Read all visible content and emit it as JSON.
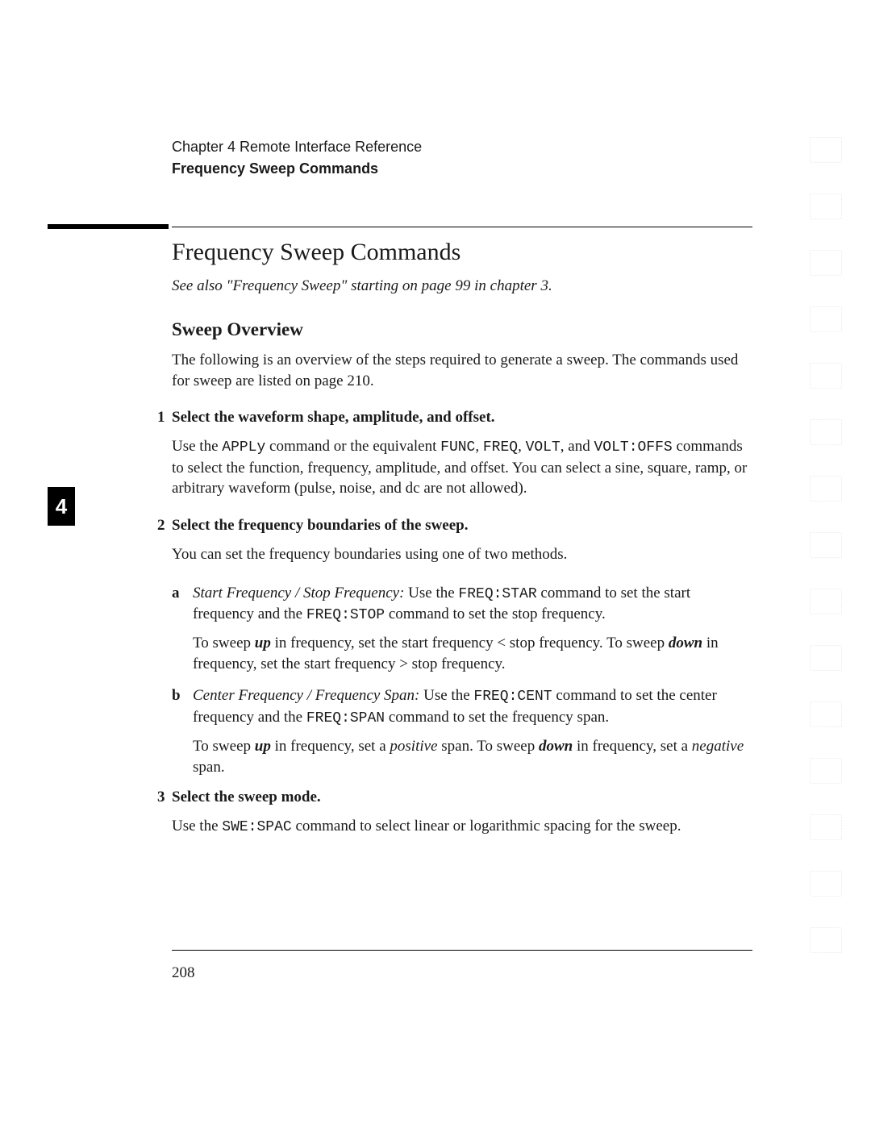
{
  "header": {
    "chapter": "Chapter 4  Remote Interface Reference",
    "section": "Frequency Sweep Commands"
  },
  "tab": {
    "label": "4"
  },
  "content": {
    "main_title": "Frequency Sweep Commands",
    "see_also": "See also \"Frequency Sweep\" starting on page 99 in chapter 3.",
    "sub_title": "Sweep Overview",
    "intro": "The following is an overview of the steps required to generate a sweep. The commands used for sweep are listed on page 210.",
    "step1": {
      "num": "1",
      "title": "Select the waveform shape, amplitude, and offset.",
      "body_pre": "Use the ",
      "apply": "APPLy",
      "body_mid1": " command or the equivalent ",
      "func": "FUNC",
      "sep1": ", ",
      "freq": "FREQ",
      "sep2": ", ",
      "volt": "VOLT",
      "body_mid2": ", and ",
      "voltoffs": "VOLT:OFFS",
      "body_post": " commands to select the function, frequency, amplitude, and offset. You can select a sine, square, ramp, or arbitrary waveform (pulse, noise, and dc are not allowed)."
    },
    "step2": {
      "num": "2",
      "title": "Select the frequency boundaries of the sweep.",
      "body": "You can set the frequency boundaries using one of two methods.",
      "a": {
        "marker": "a",
        "it_title": "Start Frequency / Stop Frequency:",
        "pre": "  Use the ",
        "cmd1": "FREQ:STAR",
        "mid": " command to set the start frequency and the ",
        "cmd2": "FREQ:STOP",
        "post": " command to set the stop frequency.",
        "follow_pre1": "To sweep ",
        "up": "up",
        "follow_mid1": " in frequency, set the start frequency < stop frequency. To sweep ",
        "down": "down",
        "follow_post1": " in frequency, set the start frequency > stop frequency."
      },
      "b": {
        "marker": "b",
        "it_title": "Center Frequency / Frequency Span:",
        "pre": "  Use the ",
        "cmd1": "FREQ:CENT",
        "mid": " command to set the center frequency and the ",
        "cmd2": "FREQ:SPAN",
        "post": " command to set the frequency span.",
        "follow_pre1": "To sweep ",
        "up": "up",
        "follow_mid1": " in frequency, set a ",
        "positive": "positive",
        "follow_mid2": " span. To sweep ",
        "down": "down",
        "follow_mid3": " in frequency, set a ",
        "negative": "negative",
        "follow_post": " span."
      }
    },
    "step3": {
      "num": "3",
      "title": "Select the sweep mode.",
      "body_pre": "Use the ",
      "cmd": "SWE:SPAC",
      "body_post": " command to select linear or logarithmic spacing for the sweep."
    }
  },
  "footer": {
    "page": "208"
  }
}
